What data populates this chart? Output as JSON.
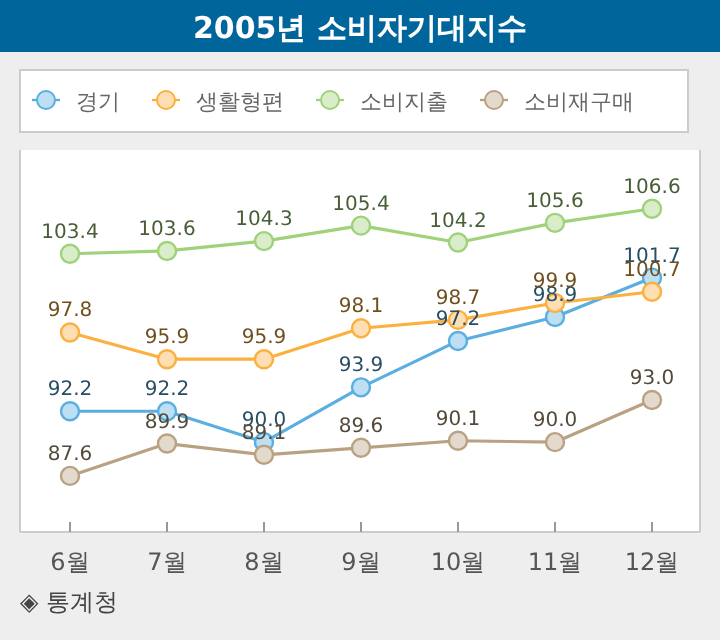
{
  "chart_data": {
    "type": "line",
    "title": "2005년 소비자기대지수",
    "categories": [
      "6월",
      "7월",
      "8월",
      "9월",
      "10월",
      "11월",
      "12월"
    ],
    "series": [
      {
        "name": "경기",
        "color": "#5aaee0",
        "values": [
          92.2,
          92.2,
          90.0,
          93.9,
          97.2,
          98.9,
          101.7
        ],
        "value_labels": [
          "92.2",
          "92.2",
          "90.0",
          "93.9",
          "97.2",
          "98.9",
          "101.7"
        ]
      },
      {
        "name": "생활형편",
        "color": "#fbb040",
        "values": [
          97.8,
          95.9,
          95.9,
          98.1,
          98.7,
          99.9,
          100.7
        ],
        "value_labels": [
          "97.8",
          "95.9",
          "95.9",
          "98.1",
          "98.7",
          "99.9",
          "100.7"
        ]
      },
      {
        "name": "소비지출",
        "color": "#9fd27a",
        "values": [
          103.4,
          103.6,
          104.3,
          105.4,
          104.2,
          105.6,
          106.6
        ],
        "value_labels": [
          "103.4",
          "103.6",
          "104.3",
          "105.4",
          "104.2",
          "105.6",
          "106.6"
        ]
      },
      {
        "name": "소비재구매",
        "color": "#b9a282",
        "values": [
          87.6,
          89.9,
          89.1,
          89.6,
          90.1,
          90.0,
          93.0
        ],
        "value_labels": [
          "87.6",
          "89.9",
          "89.1",
          "89.6",
          "90.1",
          "90.0",
          "93.0"
        ]
      }
    ],
    "legend": "top",
    "marker": "circle",
    "line_style": "solid",
    "grid": false,
    "annotations": [
      "◈ 통계청"
    ]
  }
}
